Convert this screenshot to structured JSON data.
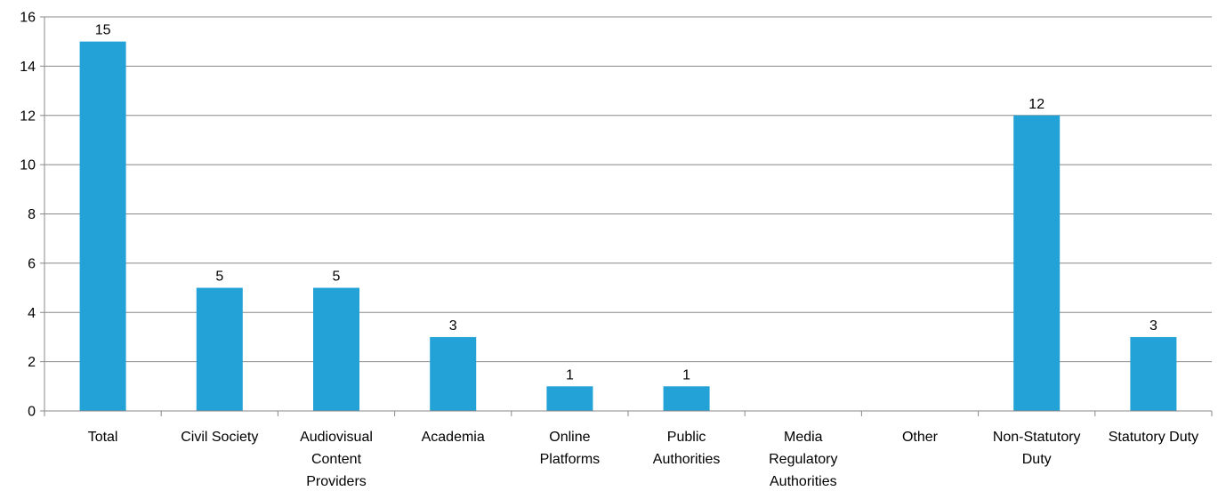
{
  "chart_data": {
    "type": "bar",
    "title": "",
    "xlabel": "",
    "ylabel": "",
    "ylim": [
      0,
      16
    ],
    "yticks": [
      0,
      2,
      4,
      6,
      8,
      10,
      12,
      14,
      16
    ],
    "grid": true,
    "legend": "none",
    "categories": [
      "Total",
      "Civil Society",
      "Audiovisual Content Providers",
      "Academia",
      "Online Platforms",
      "Public Authorities",
      "Media Regulatory Authorities",
      "Other",
      "Non-Statutory Duty",
      "Statutory Duty"
    ],
    "category_label_lines": [
      [
        "Total"
      ],
      [
        "Civil Society"
      ],
      [
        "Audiovisual",
        "Content",
        "Providers"
      ],
      [
        "Academia"
      ],
      [
        "Online",
        "Platforms"
      ],
      [
        "Public",
        "Authorities"
      ],
      [
        "Media",
        "Regulatory",
        "Authorities"
      ],
      [
        "Other"
      ],
      [
        "Non-Statutory",
        "Duty"
      ],
      [
        "Statutory Duty"
      ]
    ],
    "values": [
      15,
      5,
      5,
      3,
      1,
      1,
      null,
      null,
      12,
      3
    ],
    "data_labels": [
      "15",
      "5",
      "5",
      "3",
      "1",
      "1",
      "",
      "",
      "12",
      "3"
    ],
    "bar_color": "#22A2D6",
    "grid_color": "#888888",
    "axis_color": "#888888"
  }
}
